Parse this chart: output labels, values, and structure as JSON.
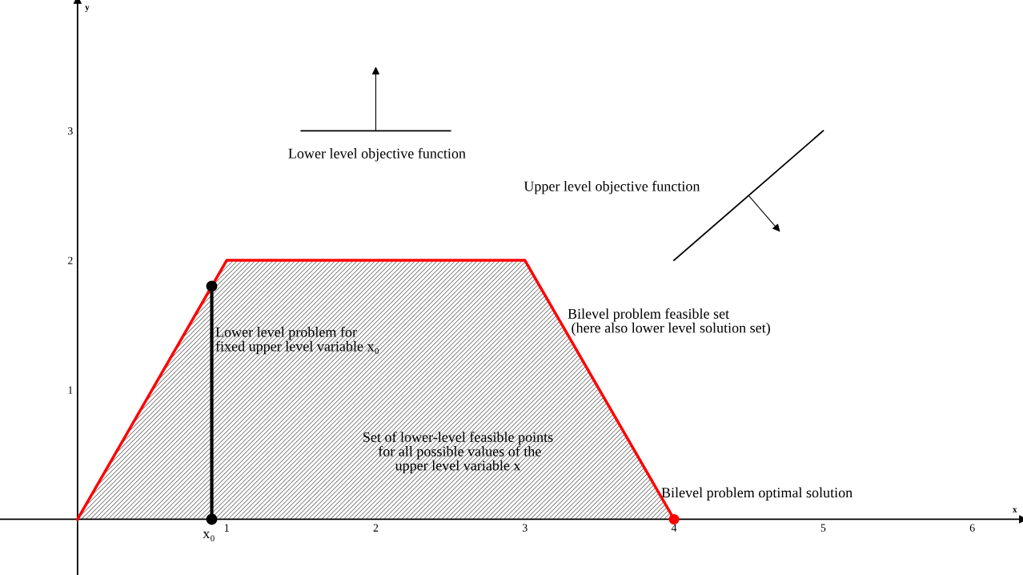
{
  "chart_data": {
    "type": "line",
    "xlabel": "x",
    "ylabel": "y",
    "xlim": [
      -0.52,
      6.34
    ],
    "ylim": [
      -0.43,
      4.01
    ],
    "xticks": [
      1,
      2,
      3,
      4,
      5,
      6
    ],
    "yticks": [
      1,
      2,
      3
    ],
    "grid": false,
    "series": [
      {
        "type": "area",
        "color": "#ff0000",
        "x": [
          0,
          1,
          3,
          4
        ],
        "values": [
          0,
          2,
          2,
          0
        ]
      },
      {
        "color": "#000000",
        "marker": "circle",
        "x": [
          0.9,
          0.9
        ],
        "values": [
          0,
          1.8
        ]
      },
      {
        "type": "scatter",
        "color": "#ff0000",
        "marker": "circle",
        "x": [
          4
        ],
        "values": [
          0
        ]
      },
      {
        "color": "#000000",
        "x": [
          1.5,
          2.5
        ],
        "values": [
          3,
          3
        ]
      },
      {
        "color": "#000000",
        "x": [
          4.0,
          5.0
        ],
        "values": [
          2,
          3
        ]
      }
    ],
    "annotations": [
      "Lower level objective function",
      "Upper level objective function",
      "Bilevel problem feasible set\n (here also lower level solution set)",
      "Lower level problem for\nfixed upper level variable x₀",
      "Set of lower-level feasible points\n for all possible values of the\nupper level variable x",
      "Bilevel problem optimal solution",
      "x₀"
    ]
  }
}
